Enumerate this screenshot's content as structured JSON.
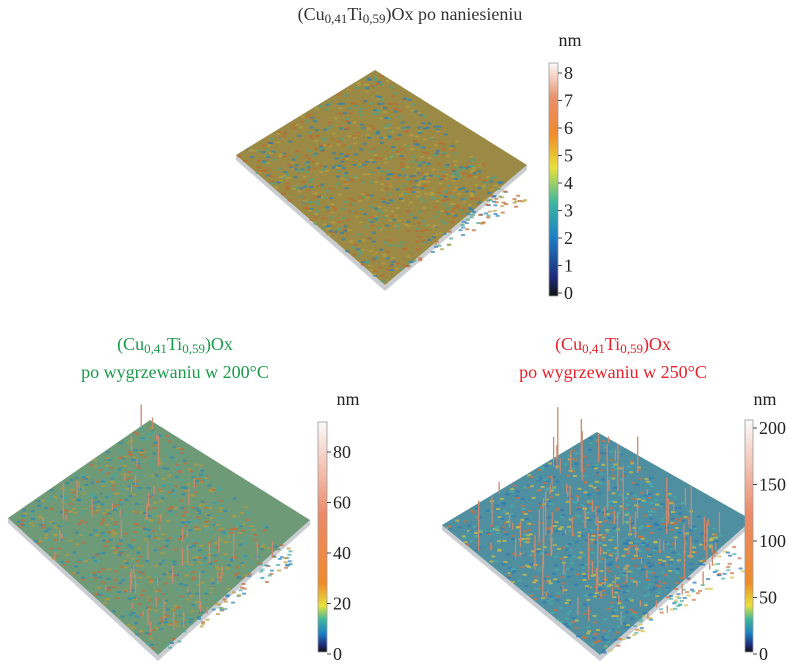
{
  "panels": [
    {
      "title": [
        "(Cu",
        "0,41",
        "Ti",
        "0,59",
        ")Ox po naniesieniu"
      ],
      "color": "#333333",
      "unit": "nm",
      "ticks": [
        0,
        1,
        2,
        3,
        4,
        5,
        6,
        7,
        8
      ]
    },
    {
      "title": [
        "(Cu",
        "0,41",
        "Ti",
        "0,59",
        ")Ox"
      ],
      "subtitle": "po wygrzewaniu w 200°C",
      "color": "#1a9a4a",
      "unit": "nm",
      "ticks": [
        0,
        20,
        40,
        60,
        80
      ]
    },
    {
      "title": [
        "(Cu",
        "0,41",
        "Ti",
        "0,59",
        ")Ox"
      ],
      "subtitle": "po wygrzewaniu w 250°C",
      "color": "#e8202a",
      "unit": "nm",
      "ticks": [
        0,
        50,
        100,
        150,
        200
      ]
    }
  ]
}
